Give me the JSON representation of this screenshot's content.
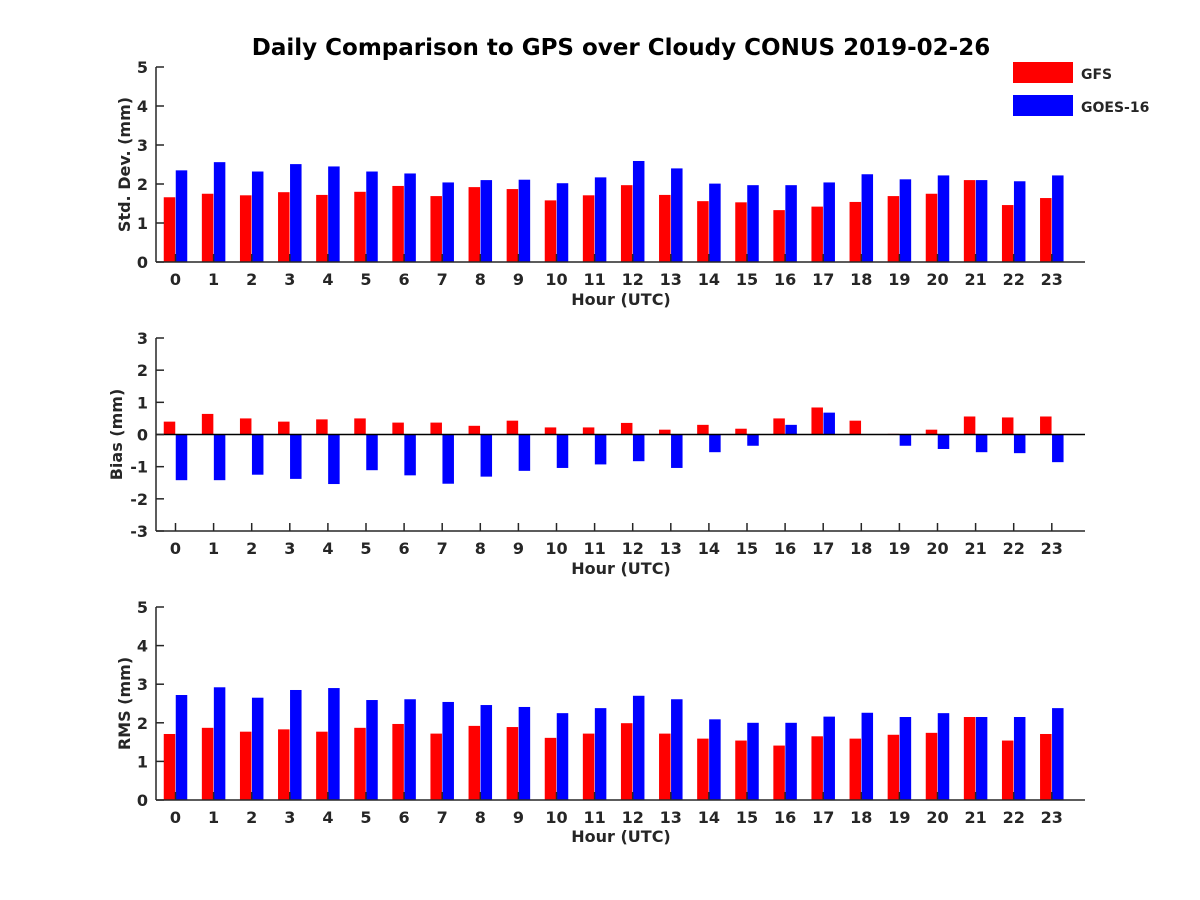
{
  "title": "Daily Comparison to GPS over Cloudy CONUS 2019-02-26",
  "legend": {
    "placement": "top-right",
    "items": [
      {
        "name": "GFS",
        "color": "#ff0000"
      },
      {
        "name": "GOES-16",
        "color": "#0000ff"
      }
    ]
  },
  "colors": {
    "gfs": "#ff0000",
    "goes16": "#0000ff",
    "axis": "#262626"
  },
  "chart_data": [
    {
      "type": "bar",
      "ylabel": "Std. Dev. (mm)",
      "xlabel": "Hour (UTC)",
      "ylim": [
        0,
        5
      ],
      "yticks": [
        0,
        1,
        2,
        3,
        4,
        5
      ],
      "grid": false,
      "categories": [
        "0",
        "1",
        "2",
        "3",
        "4",
        "5",
        "6",
        "7",
        "8",
        "9",
        "10",
        "11",
        "12",
        "13",
        "14",
        "15",
        "16",
        "17",
        "18",
        "19",
        "20",
        "21",
        "22",
        "23"
      ],
      "series": [
        {
          "name": "GFS",
          "values": [
            1.66,
            1.75,
            1.71,
            1.79,
            1.72,
            1.8,
            1.95,
            1.69,
            1.92,
            1.87,
            1.58,
            1.71,
            1.97,
            1.72,
            1.56,
            1.53,
            1.33,
            1.42,
            1.54,
            1.69,
            1.75,
            2.1,
            1.46,
            1.64
          ]
        },
        {
          "name": "GOES-16",
          "values": [
            2.35,
            2.56,
            2.32,
            2.51,
            2.45,
            2.32,
            2.27,
            2.04,
            2.1,
            2.11,
            2.02,
            2.17,
            2.59,
            2.4,
            2.01,
            1.97,
            1.97,
            2.04,
            2.25,
            2.12,
            2.22,
            2.1,
            2.07,
            2.22
          ]
        }
      ]
    },
    {
      "type": "bar",
      "ylabel": "Bias (mm)",
      "xlabel": "Hour (UTC)",
      "ylim": [
        -3,
        3
      ],
      "yticks": [
        -3,
        -2,
        -1,
        0,
        1,
        2,
        3
      ],
      "grid": false,
      "zero_line": true,
      "categories": [
        "0",
        "1",
        "2",
        "3",
        "4",
        "5",
        "6",
        "7",
        "8",
        "9",
        "10",
        "11",
        "12",
        "13",
        "14",
        "15",
        "16",
        "17",
        "18",
        "19",
        "20",
        "21",
        "22",
        "23"
      ],
      "series": [
        {
          "name": "GFS",
          "values": [
            0.4,
            0.64,
            0.5,
            0.4,
            0.47,
            0.5,
            0.37,
            0.37,
            0.27,
            0.43,
            0.22,
            0.22,
            0.36,
            0.15,
            0.3,
            0.18,
            0.5,
            0.84,
            0.43,
            0.02,
            0.15,
            0.56,
            0.53,
            0.56
          ]
        },
        {
          "name": "GOES-16",
          "values": [
            -1.42,
            -1.42,
            -1.25,
            -1.38,
            -1.54,
            -1.11,
            -1.27,
            -1.53,
            -1.31,
            -1.13,
            -1.04,
            -0.93,
            -0.83,
            -1.04,
            -0.55,
            -0.35,
            0.3,
            0.68,
            0.0,
            -0.35,
            -0.45,
            -0.55,
            -0.58,
            -0.86
          ]
        }
      ]
    },
    {
      "type": "bar",
      "ylabel": "RMS (mm)",
      "xlabel": "Hour (UTC)",
      "ylim": [
        0,
        5
      ],
      "yticks": [
        0,
        1,
        2,
        3,
        4,
        5
      ],
      "grid": false,
      "categories": [
        "0",
        "1",
        "2",
        "3",
        "4",
        "5",
        "6",
        "7",
        "8",
        "9",
        "10",
        "11",
        "12",
        "13",
        "14",
        "15",
        "16",
        "17",
        "18",
        "19",
        "20",
        "21",
        "22",
        "23"
      ],
      "series": [
        {
          "name": "GFS",
          "values": [
            1.71,
            1.87,
            1.77,
            1.83,
            1.77,
            1.87,
            1.97,
            1.72,
            1.92,
            1.89,
            1.61,
            1.72,
            1.99,
            1.72,
            1.59,
            1.54,
            1.41,
            1.65,
            1.59,
            1.69,
            1.74,
            2.15,
            1.54,
            1.71
          ]
        },
        {
          "name": "GOES-16",
          "values": [
            2.72,
            2.92,
            2.65,
            2.85,
            2.9,
            2.59,
            2.61,
            2.54,
            2.46,
            2.41,
            2.25,
            2.38,
            2.7,
            2.61,
            2.09,
            2.0,
            2.0,
            2.16,
            2.26,
            2.15,
            2.25,
            2.15,
            2.15,
            2.38
          ]
        }
      ]
    }
  ]
}
